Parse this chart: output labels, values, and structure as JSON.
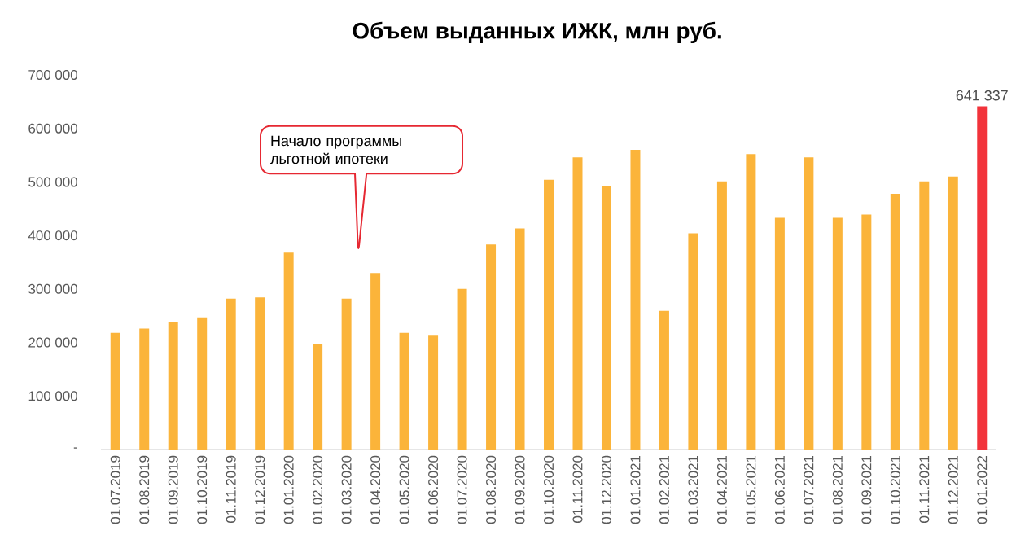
{
  "chart_data": {
    "type": "bar",
    "title": "Объем выданных ИЖК, млн руб.",
    "categories": [
      "01.07.2019",
      "01.08.2019",
      "01.09.2019",
      "01.10.2019",
      "01.11.2019",
      "01.12.2019",
      "01.01.2020",
      "01.02.2020",
      "01.03.2020",
      "01.04.2020",
      "01.05.2020",
      "01.06.2020",
      "01.07.2020",
      "01.08.2020",
      "01.09.2020",
      "01.10.2020",
      "01.11.2020",
      "01.12.2020",
      "01.01.2021",
      "01.02.2021",
      "01.03.2021",
      "01.04.2021",
      "01.05.2021",
      "01.06.2021",
      "01.07.2021",
      "01.08.2021",
      "01.09.2021",
      "01.10.2021",
      "01.11.2021",
      "01.12.2021",
      "01.01.2022"
    ],
    "values": [
      218000,
      226000,
      239000,
      247000,
      282000,
      284000,
      368000,
      198000,
      282000,
      330000,
      218000,
      214000,
      300000,
      383000,
      413000,
      504000,
      546000,
      492000,
      560000,
      259000,
      404000,
      501000,
      552000,
      433000,
      546000,
      433000,
      439000,
      478000,
      501000,
      510000,
      641337
    ],
    "colors": [
      "#fbb43a",
      "#fbb43a",
      "#fbb43a",
      "#fbb43a",
      "#fbb43a",
      "#fbb43a",
      "#fbb43a",
      "#fbb43a",
      "#fbb43a",
      "#fbb43a",
      "#fbb43a",
      "#fbb43a",
      "#fbb43a",
      "#fbb43a",
      "#fbb43a",
      "#fbb43a",
      "#fbb43a",
      "#fbb43a",
      "#fbb43a",
      "#fbb43a",
      "#fbb43a",
      "#fbb43a",
      "#fbb43a",
      "#fbb43a",
      "#fbb43a",
      "#fbb43a",
      "#fbb43a",
      "#fbb43a",
      "#fbb43a",
      "#fbb43a",
      "#f2333b"
    ],
    "value_labels": [
      null,
      null,
      null,
      null,
      null,
      null,
      null,
      null,
      null,
      null,
      null,
      null,
      null,
      null,
      null,
      null,
      null,
      null,
      null,
      null,
      null,
      null,
      null,
      null,
      null,
      null,
      null,
      null,
      null,
      null,
      "641 337"
    ],
    "ylim": [
      0,
      700000
    ],
    "yticks": [
      {
        "value": 0,
        "label": "-"
      },
      {
        "value": 100000,
        "label": "100 000"
      },
      {
        "value": 200000,
        "label": "200 000"
      },
      {
        "value": 300000,
        "label": "300 000"
      },
      {
        "value": 400000,
        "label": "400 000"
      },
      {
        "value": 500000,
        "label": "500 000"
      },
      {
        "value": 600000,
        "label": "600 000"
      },
      {
        "value": 700000,
        "label": "700 000"
      }
    ],
    "grid": false,
    "annotations": [
      "Начало  программы льготной ипотеки"
    ]
  }
}
